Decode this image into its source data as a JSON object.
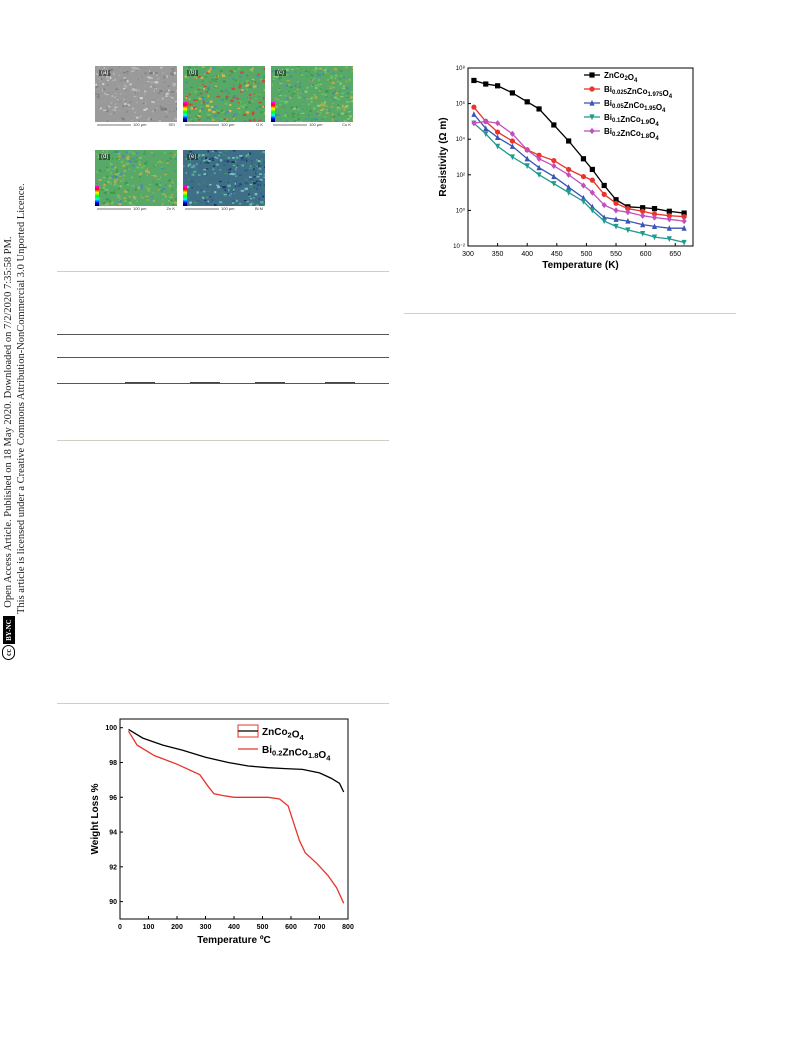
{
  "sidebar": {
    "line1": "Open Access Article. Published on 18 May 2020. Downloaded on 7/2/2020 7:35:58 PM.",
    "line2": "This article is licensed under a Creative Commons Attribution-NonCommercial 3.0 Unported Licence.",
    "badge_cc": "cc",
    "badge_by": "BY-NC"
  },
  "sem_panels": [
    {
      "label": "(a)",
      "scale": "100 µm",
      "element": "SEI"
    },
    {
      "label": "(b)",
      "scale": "100 µm",
      "element": "O K"
    },
    {
      "label": "(c)",
      "scale": "100 µm",
      "element": "Co K"
    },
    {
      "label": "(d)",
      "scale": "100 µm",
      "element": "Zn K"
    },
    {
      "label": "(e)",
      "scale": "100 µm",
      "element": "Bi M"
    }
  ],
  "chart_data": [
    {
      "type": "line",
      "xlabel": "Temperature (K)",
      "ylabel": "Resistivity (Ω m)",
      "ylog": true,
      "xlim": [
        300,
        680
      ],
      "ylim_exp": [
        -2,
        8
      ],
      "xticks": [
        "300",
        "350",
        "400",
        "450",
        "500",
        "550",
        "600",
        "650"
      ],
      "yticks": [
        "10⁻²",
        "10⁰",
        "10²",
        "10⁴",
        "10⁶",
        "10⁸"
      ],
      "legend_position": "top-right",
      "series": [
        {
          "name_base": "ZnCo",
          "name_sub1": "2",
          "name_mid": "O",
          "name_sub2": "4",
          "prefix": "",
          "prefix_sub": "",
          "color": "#000000",
          "marker": "square",
          "x": [
            310,
            330,
            350,
            375,
            400,
            420,
            445,
            470,
            495,
            510,
            530,
            550,
            570,
            595,
            615,
            640,
            665
          ],
          "y": [
            7.3,
            7.1,
            7.0,
            6.6,
            6.1,
            5.7,
            4.8,
            3.9,
            2.9,
            2.3,
            1.4,
            0.6,
            0.2,
            0.15,
            0.1,
            -0.05,
            -0.15
          ]
        },
        {
          "name_base": "ZnCo",
          "name_sub1": "1.975",
          "name_mid": "O",
          "name_sub2": "4",
          "prefix": "Bi",
          "prefix_sub": "0.025",
          "color": "#e8342a",
          "marker": "circle",
          "x": [
            310,
            330,
            350,
            375,
            400,
            420,
            445,
            470,
            495,
            510,
            530,
            550,
            570,
            595,
            615,
            640,
            665
          ],
          "y": [
            5.8,
            5.0,
            4.4,
            3.9,
            3.4,
            3.1,
            2.8,
            2.3,
            1.9,
            1.7,
            0.9,
            0.4,
            0.1,
            -0.05,
            -0.2,
            -0.3,
            -0.35
          ]
        },
        {
          "name_base": "ZnCo",
          "name_sub1": "1.95",
          "name_mid": "O",
          "name_sub2": "4",
          "prefix": "Bi",
          "prefix_sub": "0.05",
          "color": "#3a55b4",
          "marker": "triangle-up",
          "x": [
            310,
            330,
            350,
            375,
            400,
            420,
            445,
            470,
            495,
            510,
            530,
            550,
            570,
            595,
            615,
            640,
            665
          ],
          "y": [
            5.4,
            4.6,
            4.1,
            3.6,
            2.9,
            2.4,
            1.9,
            1.3,
            0.7,
            0.2,
            -0.4,
            -0.5,
            -0.6,
            -0.8,
            -0.9,
            -1.0,
            -1.0
          ]
        },
        {
          "name_base": "ZnCo",
          "name_sub1": "1.9",
          "name_mid": "O",
          "name_sub2": "4",
          "prefix": "Bi",
          "prefix_sub": "0.1",
          "color": "#1f9a8e",
          "marker": "triangle-down",
          "x": [
            310,
            330,
            350,
            375,
            400,
            420,
            445,
            470,
            495,
            510,
            530,
            550,
            570,
            595,
            615,
            640,
            665
          ],
          "y": [
            4.9,
            4.3,
            3.6,
            3.0,
            2.5,
            2.0,
            1.5,
            1.0,
            0.5,
            0.0,
            -0.6,
            -0.9,
            -1.1,
            -1.3,
            -1.5,
            -1.6,
            -1.8
          ]
        },
        {
          "name_base": "ZnCo",
          "name_sub1": "1.8",
          "name_mid": "O",
          "name_sub2": "4",
          "prefix": "Bi",
          "prefix_sub": "0.2",
          "color": "#c050c0",
          "marker": "diamond",
          "x": [
            310,
            330,
            350,
            375,
            400,
            420,
            445,
            470,
            495,
            510,
            530,
            550,
            570,
            595,
            615,
            640,
            665
          ],
          "y": [
            4.9,
            5.0,
            4.9,
            4.3,
            3.4,
            2.9,
            2.5,
            2.0,
            1.4,
            1.0,
            0.3,
            0.0,
            -0.1,
            -0.3,
            -0.4,
            -0.5,
            -0.6
          ]
        }
      ]
    },
    {
      "type": "line",
      "xlabel": "Temperature ºC",
      "ylabel": "Weight Loss %",
      "xlim": [
        0,
        800
      ],
      "ylim": [
        89,
        100.5
      ],
      "xticks": [
        0,
        100,
        200,
        300,
        400,
        500,
        600,
        700,
        800
      ],
      "yticks": [
        90,
        92,
        94,
        96,
        98,
        100
      ],
      "legend_position": "top-right",
      "series": [
        {
          "name_base": "ZnCo",
          "name_sub1": "2",
          "name_mid": "O",
          "name_sub2": "4",
          "prefix": "",
          "prefix_sub": "",
          "color": "#000000",
          "x": [
            30,
            80,
            150,
            220,
            300,
            380,
            450,
            520,
            580,
            640,
            700,
            740,
            770,
            785
          ],
          "y": [
            99.9,
            99.4,
            99.0,
            98.7,
            98.3,
            98.0,
            97.8,
            97.7,
            97.65,
            97.6,
            97.4,
            97.1,
            96.8,
            96.3
          ]
        },
        {
          "name_base": "ZnCo",
          "name_sub1": "1.8",
          "name_mid": "O",
          "name_sub2": "4",
          "prefix": "Bi",
          "prefix_sub": "0.2",
          "color": "#e8342a",
          "x": [
            30,
            60,
            120,
            200,
            280,
            310,
            330,
            360,
            400,
            450,
            520,
            560,
            590,
            610,
            630,
            650,
            690,
            730,
            760,
            785
          ],
          "y": [
            99.8,
            99.0,
            98.4,
            97.9,
            97.3,
            96.6,
            96.2,
            96.1,
            96.0,
            96.0,
            96.0,
            95.9,
            95.5,
            94.5,
            93.5,
            92.8,
            92.2,
            91.5,
            90.8,
            89.9
          ]
        }
      ]
    }
  ]
}
